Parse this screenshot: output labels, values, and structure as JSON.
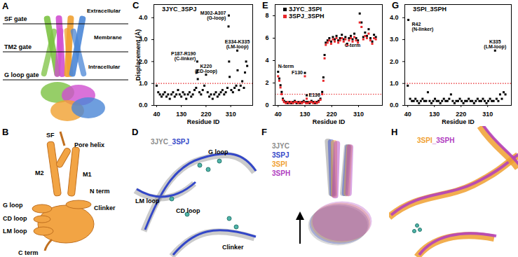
{
  "chart_data": [
    {
      "panel": "C",
      "type": "scatter",
      "legend": "top-left",
      "x_label": "Residue ID",
      "y_label": "Displacement (Å)",
      "xlim": [
        30,
        390
      ],
      "xticks": [
        40,
        130,
        220,
        310
      ],
      "ylim": [
        0,
        4.6
      ],
      "yticks": [
        0,
        1,
        2,
        3,
        4
      ],
      "reference_line": {
        "value": 1,
        "color": "#e8262a",
        "line_style": "dotted"
      },
      "x": [
        40,
        46,
        52,
        58,
        64,
        70,
        76,
        82,
        88,
        94,
        100,
        106,
        112,
        118,
        124,
        130,
        136,
        142,
        148,
        154,
        160,
        166,
        172,
        178,
        184,
        187,
        188,
        189,
        190,
        196,
        202,
        208,
        214,
        220,
        226,
        232,
        238,
        244,
        250,
        256,
        262,
        268,
        274,
        280,
        286,
        292,
        298,
        302,
        303,
        304,
        306,
        312,
        318,
        324,
        330,
        334,
        335,
        340,
        346,
        352,
        358,
        362,
        366,
        370
      ],
      "series": [
        {
          "name": "3JYC_3SPJ",
          "color": "#000000",
          "marker": "square",
          "values": [
            0.9,
            0.6,
            0.5,
            0.4,
            0.5,
            0.6,
            0.4,
            0.5,
            0.3,
            0.5,
            0.6,
            0.4,
            0.5,
            0.7,
            0.5,
            0.4,
            0.6,
            0.5,
            0.3,
            0.5,
            0.6,
            0.4,
            0.5,
            0.7,
            0.8,
            1.5,
            2.0,
            1.6,
            1.2,
            0.6,
            0.5,
            0.7,
            0.9,
            1.4,
            0.6,
            0.4,
            0.5,
            0.3,
            0.5,
            0.6,
            0.4,
            0.5,
            0.6,
            0.7,
            0.5,
            0.6,
            0.8,
            3.6,
            4.1,
            2.0,
            1.3,
            0.7,
            0.6,
            0.8,
            0.9,
            2.5,
            1.6,
            0.7,
            0.9,
            1.1,
            0.8,
            1.5,
            2.0,
            1.8
          ]
        }
      ],
      "annotations": [
        {
          "text": "P187-R190\n(C-linker)",
          "x": 188,
          "y": 2.0
        },
        {
          "text": "K220\n(CD-loop)",
          "x": 220,
          "y": 1.4
        },
        {
          "text": "M302-A307\n(G-loop)",
          "x": 303,
          "y": 4.1
        },
        {
          "text": "E334-K335\n(LM-loop)",
          "x": 334,
          "y": 2.5
        }
      ]
    },
    {
      "panel": "E",
      "type": "scatter",
      "legend": "top-left",
      "x_label": "Residue ID",
      "xlim": [
        30,
        390
      ],
      "xticks": [
        40,
        130,
        220,
        310
      ],
      "ylim": [
        0,
        9
      ],
      "yticks": [
        0,
        2,
        4,
        6,
        8
      ],
      "reference_line": {
        "value": 1,
        "color": "#e8262a",
        "line_style": "dotted"
      },
      "x": [
        40,
        44,
        48,
        52,
        56,
        60,
        66,
        72,
        78,
        84,
        90,
        96,
        102,
        108,
        114,
        120,
        126,
        130,
        134,
        136,
        140,
        146,
        152,
        158,
        164,
        170,
        176,
        182,
        188,
        192,
        196,
        200,
        206,
        212,
        218,
        224,
        230,
        236,
        242,
        248,
        254,
        260,
        266,
        272,
        278,
        284,
        290,
        296,
        302,
        308,
        314,
        320,
        326,
        332,
        338,
        344,
        350,
        356,
        362,
        368
      ],
      "series": [
        {
          "name": "3JYC_3SPI",
          "color": "#000000",
          "marker": "square",
          "values": [
            3.0,
            2.4,
            1.8,
            1.2,
            0.6,
            0.4,
            0.3,
            0.2,
            0.3,
            0.2,
            0.3,
            0.4,
            0.2,
            0.3,
            0.2,
            0.3,
            0.4,
            2.9,
            0.3,
            0.9,
            0.3,
            0.2,
            0.4,
            0.3,
            0.2,
            0.3,
            0.4,
            0.6,
            1.2,
            2.5,
            4.5,
            5.6,
            5.8,
            6.0,
            5.7,
            6.1,
            5.9,
            6.2,
            5.8,
            6.0,
            6.3,
            5.9,
            6.1,
            5.5,
            6.0,
            6.2,
            5.9,
            6.4,
            6.0,
            5.8,
            8.2,
            7.4,
            6.1,
            6.5,
            6.2,
            6.8,
            6.0,
            5.7,
            6.3,
            6.1
          ]
        },
        {
          "name": "3SPJ_3SPH",
          "color": "#e8262a",
          "marker": "square",
          "values": [
            2.6,
            2.2,
            1.6,
            1.0,
            0.5,
            0.3,
            0.2,
            0.3,
            0.2,
            0.3,
            0.2,
            0.3,
            0.3,
            0.2,
            0.3,
            0.2,
            0.3,
            2.6,
            0.2,
            0.6,
            0.2,
            0.3,
            0.3,
            0.2,
            0.3,
            0.2,
            0.3,
            0.5,
            1.0,
            2.2,
            4.2,
            5.4,
            5.6,
            5.8,
            5.5,
            5.9,
            5.7,
            6.0,
            5.6,
            5.8,
            6.0,
            5.7,
            5.9,
            5.4,
            5.8,
            6.0,
            5.7,
            6.1,
            5.8,
            5.6,
            7.4,
            7.0,
            5.9,
            6.2,
            6.0,
            6.4,
            5.8,
            5.5,
            6.0,
            5.9
          ]
        }
      ],
      "annotations": [
        {
          "text": "N-term",
          "x": 40,
          "y": 3.0
        },
        {
          "text": "F130",
          "x": 130,
          "y": 2.9
        },
        {
          "text": "E136",
          "x": 136,
          "y": 0.9
        },
        {
          "text": "C-term",
          "x": 290,
          "y": 5.9
        }
      ]
    },
    {
      "panel": "G",
      "type": "scatter",
      "legend": "top-left",
      "x_label": "Residue ID",
      "xlim": [
        30,
        390
      ],
      "xticks": [
        40,
        130,
        220,
        310
      ],
      "ylim": [
        0,
        4.6
      ],
      "yticks": [
        0,
        1,
        2,
        3,
        4
      ],
      "reference_line": {
        "value": 1,
        "color": "#e8262a",
        "line_style": "dotted"
      },
      "x": [
        40,
        42,
        48,
        54,
        60,
        66,
        72,
        78,
        84,
        90,
        96,
        102,
        108,
        114,
        120,
        126,
        132,
        138,
        144,
        150,
        156,
        162,
        168,
        174,
        180,
        186,
        192,
        198,
        204,
        210,
        216,
        222,
        228,
        234,
        240,
        246,
        252,
        258,
        264,
        270,
        276,
        282,
        288,
        294,
        300,
        306,
        312,
        318,
        324,
        330,
        335,
        340,
        346,
        352,
        358,
        364,
        370
      ],
      "series": [
        {
          "name": "3SPI_3SPH",
          "color": "#000000",
          "marker": "square",
          "values": [
            0.9,
            3.9,
            0.3,
            0.2,
            0.2,
            0.3,
            0.2,
            0.1,
            0.2,
            0.3,
            0.2,
            0.2,
            0.6,
            0.2,
            0.1,
            0.2,
            0.3,
            0.2,
            0.2,
            0.1,
            0.2,
            0.3,
            0.2,
            0.2,
            0.3,
            0.5,
            0.2,
            0.1,
            0.2,
            0.2,
            0.3,
            0.2,
            0.1,
            0.2,
            0.2,
            0.3,
            0.2,
            0.2,
            0.1,
            0.2,
            0.3,
            0.2,
            0.2,
            0.3,
            0.2,
            0.1,
            0.2,
            0.3,
            0.2,
            0.2,
            2.5,
            0.3,
            0.2,
            0.5,
            0.3,
            0.6,
            0.5
          ]
        }
      ],
      "annotations": [
        {
          "text": "R42\n(N-linker)",
          "x": 42,
          "y": 3.9
        },
        {
          "text": "K335\n(LM-loop)",
          "x": 335,
          "y": 2.5
        }
      ]
    }
  ],
  "figure": {
    "A": {
      "label": "A",
      "texts": [
        "SF gate",
        "TM2 gate",
        "G loop gate",
        "Extracellular",
        "Membrane",
        "Intracellular"
      ]
    },
    "B": {
      "label": "B",
      "texts": [
        "SF",
        "Pore helix",
        "M1",
        "M2",
        "N term",
        "Clinker",
        "G loop",
        "CD loop",
        "LM loop",
        "C term"
      ]
    },
    "D": {
      "label": "D",
      "title": [
        {
          "text": "3JYC",
          "color": "#8c8c8c"
        },
        {
          "text": "_3SPJ",
          "color": "#3347c8"
        }
      ],
      "texts": [
        "G loop",
        "LM loop",
        "CD loop",
        "Clinker"
      ]
    },
    "F": {
      "label": "F",
      "title": [
        {
          "text": "3JYC",
          "color": "#8c8c8c"
        },
        {
          "text": "3SPJ",
          "color": "#3347c8"
        },
        {
          "text": "3SPI",
          "color": "#f0a030"
        },
        {
          "text": "3SPH",
          "color": "#b03cc0"
        }
      ]
    },
    "H": {
      "label": "H",
      "title": [
        {
          "text": "3SPI",
          "color": "#f0a030"
        },
        {
          "text": "_3SPH",
          "color": "#b03cc0"
        }
      ]
    }
  }
}
